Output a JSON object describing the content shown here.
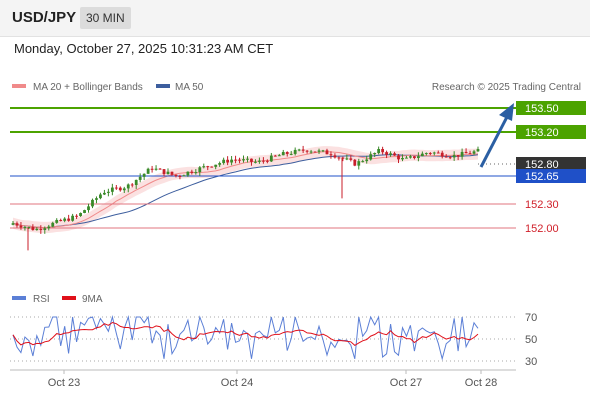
{
  "header": {
    "pair": "USD/JPY",
    "timeframe": "30 MIN"
  },
  "timestamp": "Monday, October 27, 2025 10:31:23 AM CET",
  "legend": {
    "ma20_label": "MA 20 + Bollinger Bands",
    "ma50_label": "MA 50",
    "source": "Research © 2025 Trading Central",
    "rsi_label": "RSI",
    "rsi_ma_label": "9MA"
  },
  "colors": {
    "resistance": "#4ca300",
    "support": "#e0757f",
    "ma50": "#3d5e9e",
    "ma20": "#f08a8a",
    "bull_candle": "#3a8a2a",
    "bear_candle": "#c81e2a",
    "current_price": "#333333",
    "pivot": "#1f50c8",
    "rsi": "#5b7fd6",
    "rsi_ma": "#e0101a",
    "arrow": "#2b5fa3"
  },
  "chart_data": {
    "type": "candlestick",
    "y_range": [
      151.6,
      153.65
    ],
    "x_tick_labels": [
      "Oct 23",
      "Oct 24",
      "Oct 27",
      "Oct 28"
    ],
    "levels": [
      {
        "label": "153.50",
        "value": 153.5,
        "kind": "resistance"
      },
      {
        "label": "153.20",
        "value": 153.2,
        "kind": "resistance"
      },
      {
        "label": "152.80",
        "value": 152.8,
        "kind": "current"
      },
      {
        "label": "152.65",
        "value": 152.65,
        "kind": "pivot"
      },
      {
        "label": "152.30",
        "value": 152.3,
        "kind": "support"
      },
      {
        "label": "152.00",
        "value": 152.0,
        "kind": "support"
      }
    ],
    "rsi": {
      "y_range": [
        20,
        80
      ],
      "levels": [
        70,
        50,
        30
      ],
      "level_labels": [
        "70",
        "50",
        "30"
      ]
    }
  }
}
